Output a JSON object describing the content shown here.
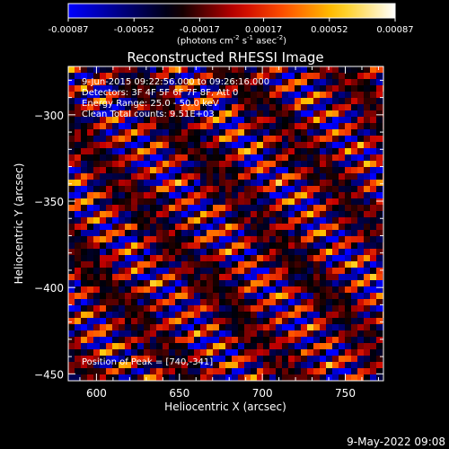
{
  "chart_data": {
    "type": "heatmap",
    "title": "Reconstructed RHESSI Image",
    "xlabel": "Heliocentric X (arcsec)",
    "ylabel": "Heliocentric Y (arcsec)",
    "xlim": [
      583,
      773
    ],
    "ylim": [
      -454,
      -272
    ],
    "xticks": [
      600,
      650,
      700,
      750
    ],
    "yticks": [
      -300,
      -350,
      -400,
      -450
    ],
    "colorbar": {
      "ticks": [
        "-0.00087",
        "-0.00052",
        "-0.00017",
        "0.00017",
        "0.00052",
        "0.00087"
      ],
      "range": [
        -0.00087,
        0.00087
      ],
      "units_prefix": "(photons cm",
      "units_exp1": "-2",
      "units_mid": " s",
      "units_exp2": "-1",
      "units_mid2": " asec",
      "units_exp3": "-2",
      "units_suffix": ")"
    },
    "info_lines": [
      "9-Jun-2015 09:22:56.000 to 09:26:16.000",
      "Detectors: 3F 4F 5F 6F 7F 8F, Att 0",
      "Energy Range: 25.0 - 50.0 keV",
      "Clean     Total counts: 9.51E+03"
    ],
    "peak_label": "Position of Peak = [740,-341]",
    "peak": [
      740,
      -341
    ],
    "bright_bands": [
      {
        "x": [
          586,
          770
        ],
        "y": -291
      },
      {
        "x": [
          586,
          770
        ],
        "y": -313
      },
      {
        "x": [
          586,
          770
        ],
        "y": -336
      },
      {
        "x": [
          586,
          770
        ],
        "y": -358
      },
      {
        "x": [
          586,
          770
        ],
        "y": -381
      },
      {
        "x": [
          586,
          770
        ],
        "y": -403
      },
      {
        "x": [
          586,
          770
        ],
        "y": -425
      },
      {
        "x": [
          586,
          770
        ],
        "y": -446
      }
    ]
  },
  "footer": {
    "date": "9-May-2022 09:08"
  }
}
